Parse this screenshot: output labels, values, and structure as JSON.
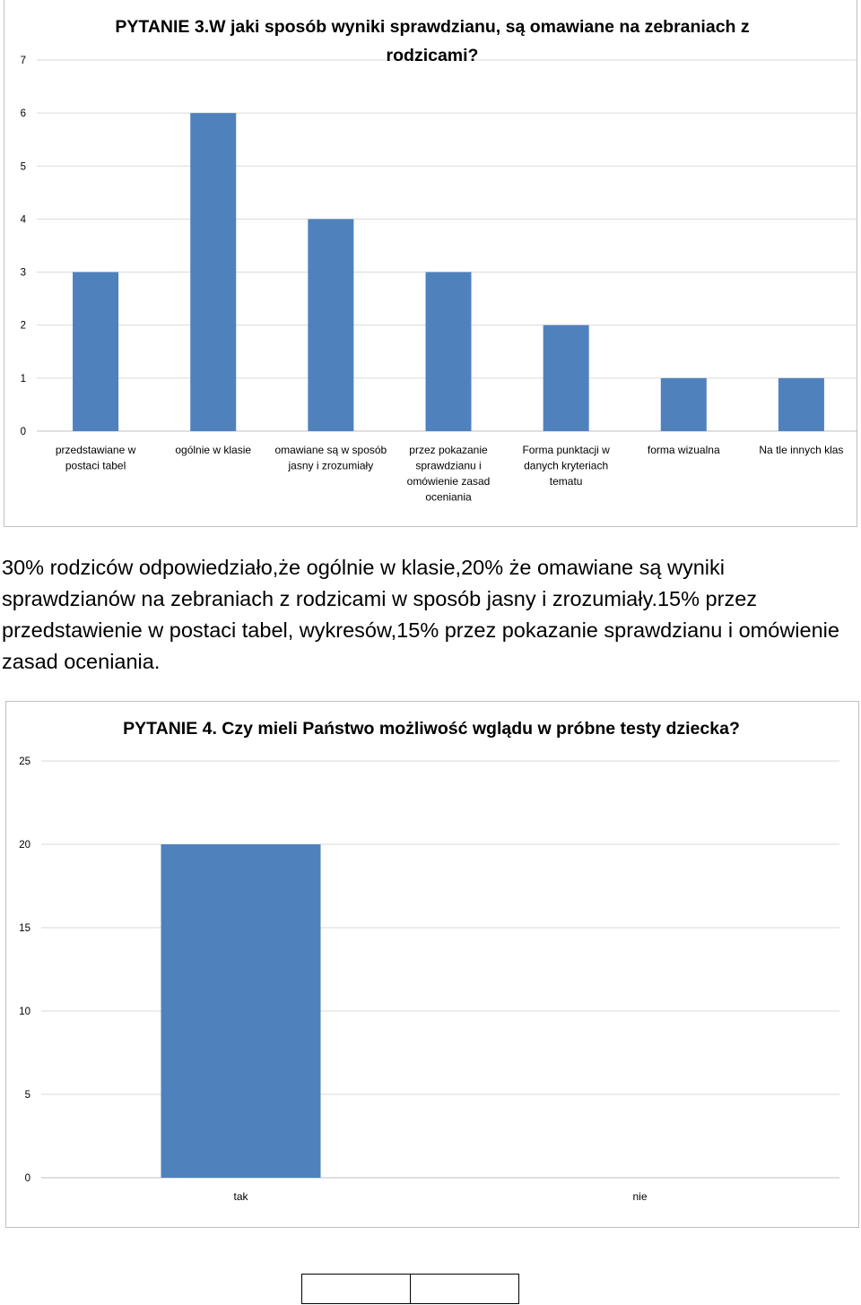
{
  "colors": {
    "bar": "#4f81bd",
    "grid": "#d9d9d9",
    "axis": "#bfbfbf"
  },
  "chart_data": [
    {
      "type": "bar",
      "title": "PYTANIE 3.W jaki sposób wyniki sprawdzianu, są omawiane na zebraniach z rodzicami?",
      "categories": [
        "przedstawiane w postaci tabel",
        "ogólnie w klasie",
        "omawiane są w sposób jasny i zrozumiały",
        "przez pokazanie sprawdzianu i omówienie zasad oceniania",
        "Forma punktacji w danych kryteriach tematu",
        "forma wizualna",
        "Na tle innych klas"
      ],
      "values": [
        3,
        6,
        4,
        3,
        2,
        1,
        1
      ],
      "ylim": [
        0,
        7
      ],
      "yticks": [
        "0",
        "1",
        "2",
        "3",
        "4",
        "5",
        "6",
        "7"
      ],
      "xlabel": "",
      "ylabel": "",
      "grid": true,
      "legend": "none"
    },
    {
      "type": "bar",
      "title": "PYTANIE 4. Czy mieli Państwo możliwość wglądu w próbne testy dziecka?",
      "categories": [
        "tak",
        "nie"
      ],
      "values": [
        20,
        0
      ],
      "ylim": [
        0,
        25
      ],
      "yticks": [
        "0",
        "5",
        "10",
        "15",
        "20",
        "25"
      ],
      "xlabel": "",
      "ylabel": "",
      "grid": true,
      "legend": "none"
    }
  ],
  "summary_text": "30% rodziców odpowiedziało,że ogólnie w klasie,20% że omawiane są wyniki sprawdzianów na zebraniach z rodzicami w sposób jasny i zrozumiały.15% przez przedstawienie w postaci tabel, wykresów,15% przez pokazanie sprawdzianu i omówienie zasad oceniania."
}
